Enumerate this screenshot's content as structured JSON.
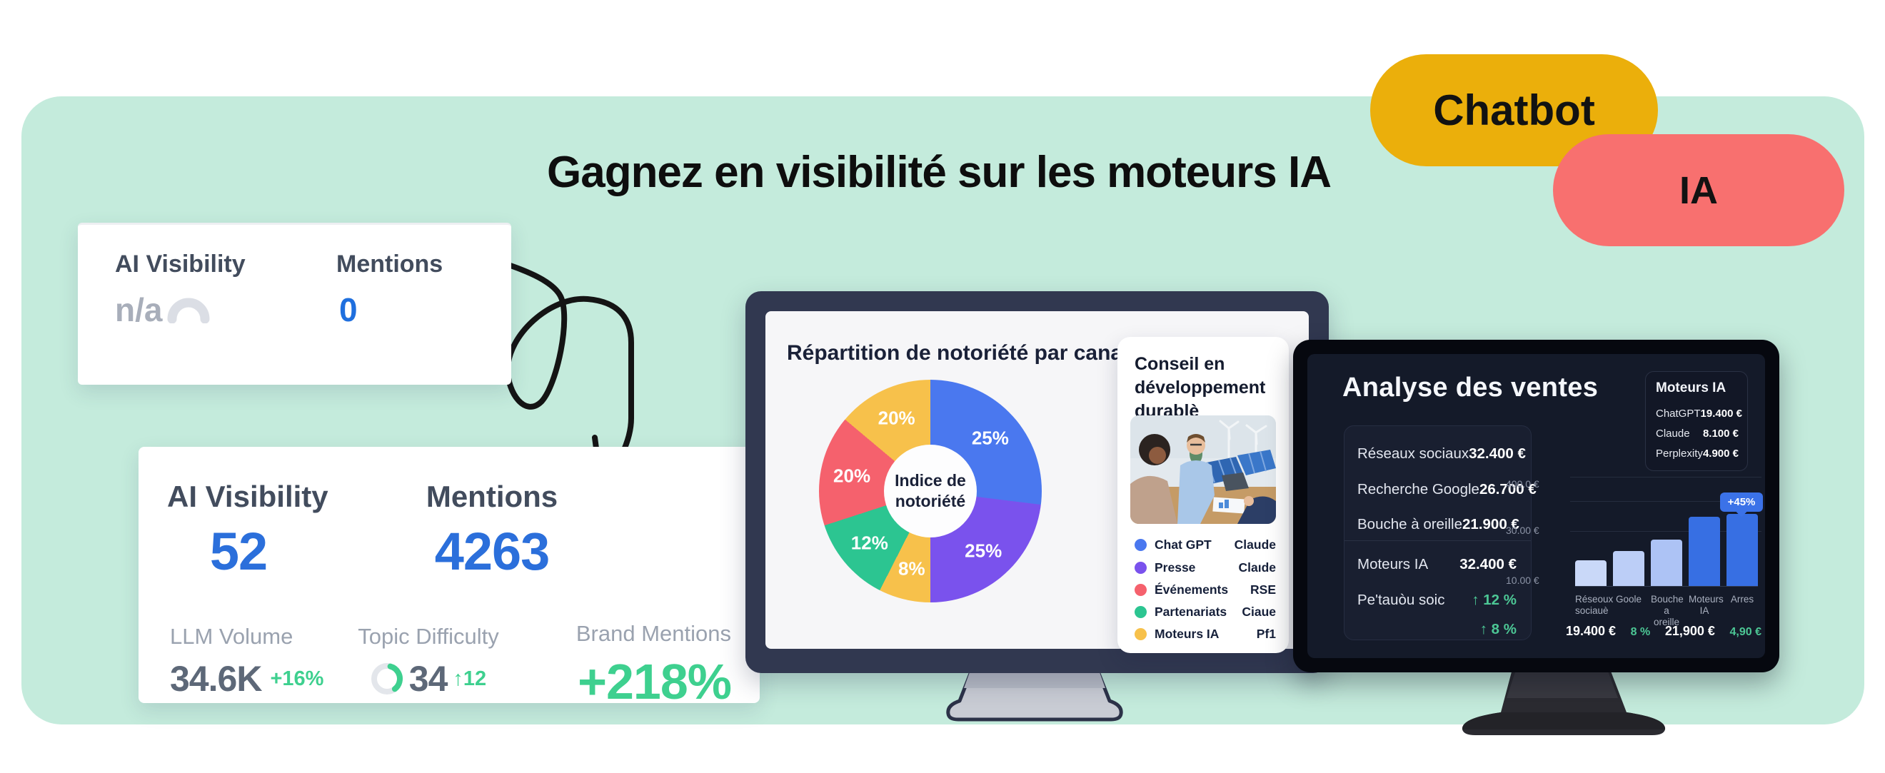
{
  "hero": {
    "title": "Gagnez en visibilité sur les moteurs IA",
    "badge_chatbot": "Chatbot",
    "badge_ia": "IA",
    "background_color": "#C4EBDC",
    "badge_chatbot_color": "#EBAF0B",
    "badge_ia_color": "#F8706F"
  },
  "widget_before": {
    "ai_visibility_label": "AI Visibility",
    "ai_visibility_value": "n/a",
    "mentions_label": "Mentions",
    "mentions_value": "0"
  },
  "widget_after": {
    "ai_visibility_label": "AI Visibility",
    "ai_visibility_value": "52",
    "mentions_label": "Mentions",
    "mentions_value": "4263",
    "llm_volume_label": "LLM Volume",
    "llm_volume_value": "34.6K",
    "llm_volume_delta": "+16%",
    "topic_difficulty_label": "Topic Difficulty",
    "topic_difficulty_value": "34",
    "topic_difficulty_delta": "↑12",
    "brand_mentions_label": "Brand Mentions",
    "brand_mentions_value": "+218%",
    "accent_blue": "#2B6FDB",
    "accent_green": "#3ED08F"
  },
  "notoriety_screen": {
    "title": "Répartition de notoriété par canal",
    "center_line1": "Indice de",
    "center_line2": "notoriété"
  },
  "conseil_card": {
    "title_line1": "Conseil en",
    "title_line2": "développement",
    "title_line3": "durablè",
    "legend": [
      {
        "name": "Chat GPT",
        "value": "Claude",
        "color": "#4A78EF"
      },
      {
        "name": "Presse",
        "value": "Claıde",
        "color": "#7A52ED"
      },
      {
        "name": "Événements",
        "value": "RSE",
        "color": "#F5616D"
      },
      {
        "name": "Partenariats",
        "value": "Ciaue",
        "color": "#2CC591"
      },
      {
        "name": "Moteurs IA",
        "value": "Pf1",
        "color": "#F7C14B"
      }
    ]
  },
  "sales_screen": {
    "title": "Analyse des ventes",
    "stats": [
      {
        "label": "Réseaux sociaux",
        "value": "32.400 €"
      },
      {
        "label": "Recherche Google",
        "value": "26.700 €"
      },
      {
        "label": "Bouche à oreille",
        "value": "21.900 €"
      },
      {
        "label": "Moteurs IA",
        "value": "32.400 €"
      },
      {
        "label": "Pe'tauòu soic",
        "value": "↑ 12 %"
      },
      {
        "label": "",
        "value": "↑ 8 %"
      }
    ],
    "panel": {
      "title": "Moteurs IA",
      "rows": [
        {
          "label": "ChatGPT",
          "value": "19.400 €"
        },
        {
          "label": "Claude",
          "value": "8.100 €"
        },
        {
          "label": "Perplexity",
          "value": "4.900 €"
        }
      ]
    },
    "badge": "+45%",
    "footer_stats": [
      "19.400 €",
      "8 %",
      "21,900 €",
      "4,90 €"
    ]
  },
  "chart_data": [
    {
      "type": "pie",
      "title": "Répartition de notoriété par canal",
      "center_label": "Indice de notoriété",
      "legend_position": "none",
      "segments": [
        {
          "label": "25%",
          "value": 25,
          "color": "#4A78EF",
          "start_deg": 0,
          "end_deg": 97
        },
        {
          "label": "25%",
          "value": 25,
          "color": "#7A52ED",
          "start_deg": 97,
          "end_deg": 180
        },
        {
          "label": "8%",
          "value": 8,
          "color": "#F7C14B",
          "start_deg": 180,
          "end_deg": 207
        },
        {
          "label": "12%",
          "value": 12,
          "color": "#2CC591",
          "start_deg": 207,
          "end_deg": 252
        },
        {
          "label": "20%",
          "value": 20,
          "color": "#F5616D",
          "start_deg": 252,
          "end_deg": 310
        },
        {
          "label": "20%",
          "value": 20,
          "color": "#F7C14B",
          "start_deg": 310,
          "end_deg": 360
        }
      ]
    },
    {
      "type": "bar",
      "title": "Analyse des ventes",
      "categories": [
        "Réseoux sociauè",
        "Goole",
        "Bouche a oreille",
        "Moteurs IA",
        "Arres"
      ],
      "values": [
        1800,
        2100,
        2600,
        3500,
        3650
      ],
      "ylim": [
        0,
        4000
      ],
      "y_tick_labels": [
        "400.0 €",
        "30.00 €",
        "10.00 €"
      ],
      "grid": true,
      "annotation": {
        "text": "+45%",
        "target": "Arres"
      },
      "bars": [
        {
          "h": 36,
          "color": "#C9D8F8"
        },
        {
          "h": 49,
          "color": "#BCCEF7"
        },
        {
          "h": 65,
          "color": "#ADC3F5"
        },
        {
          "h": 97,
          "color": "#376FE3"
        },
        {
          "h": 101,
          "color": "#376FE3"
        }
      ],
      "footer_values": [
        "19.400 €",
        "8 %",
        "21,900 €",
        "4,90 €"
      ]
    }
  ]
}
